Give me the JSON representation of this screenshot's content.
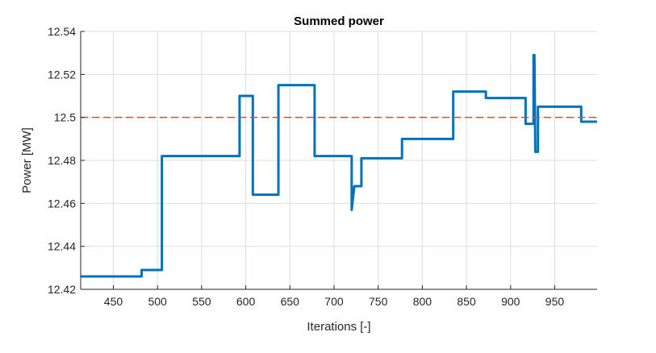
{
  "chart_data": {
    "type": "line",
    "title": "Summed power",
    "xlabel": "Iterations [-]",
    "ylabel": "Power [MW]",
    "xlim": [
      413,
      998
    ],
    "ylim": [
      12.42,
      12.54
    ],
    "xticks": [
      450,
      500,
      550,
      600,
      650,
      700,
      750,
      800,
      850,
      900,
      950
    ],
    "yticks": [
      12.42,
      12.44,
      12.46,
      12.48,
      12.5,
      12.52,
      12.54
    ],
    "ytick_labels": [
      "12.42",
      "12.44",
      "12.46",
      "12.48",
      "12.5",
      "12.52",
      "12.54"
    ],
    "grid": true,
    "series": [
      {
        "color": "#0072BD",
        "x": [
          413,
          482,
          482,
          505,
          505,
          593,
          593,
          608,
          608,
          637,
          637,
          678,
          678,
          720,
          720,
          723,
          723,
          731,
          731,
          734,
          734,
          777,
          777,
          835,
          835,
          872,
          872,
          917,
          917,
          926,
          926,
          927,
          927,
          928,
          928,
          931,
          931,
          937,
          937,
          980,
          980,
          998
        ],
        "y": [
          12.426,
          12.426,
          12.429,
          12.429,
          12.482,
          12.482,
          12.51,
          12.51,
          12.464,
          12.464,
          12.515,
          12.515,
          12.482,
          12.482,
          12.457,
          12.468,
          12.468,
          12.468,
          12.481,
          12.481,
          12.481,
          12.481,
          12.49,
          12.49,
          12.512,
          12.512,
          12.509,
          12.509,
          12.497,
          12.497,
          12.529,
          12.529,
          12.529,
          12.484,
          12.484,
          12.484,
          12.505,
          12.505,
          12.505,
          12.505,
          12.498,
          12.498
        ]
      },
      {
        "color": "#D95319",
        "style": "dashed",
        "x": [
          413,
          998
        ],
        "y": [
          12.5,
          12.5
        ]
      }
    ]
  }
}
